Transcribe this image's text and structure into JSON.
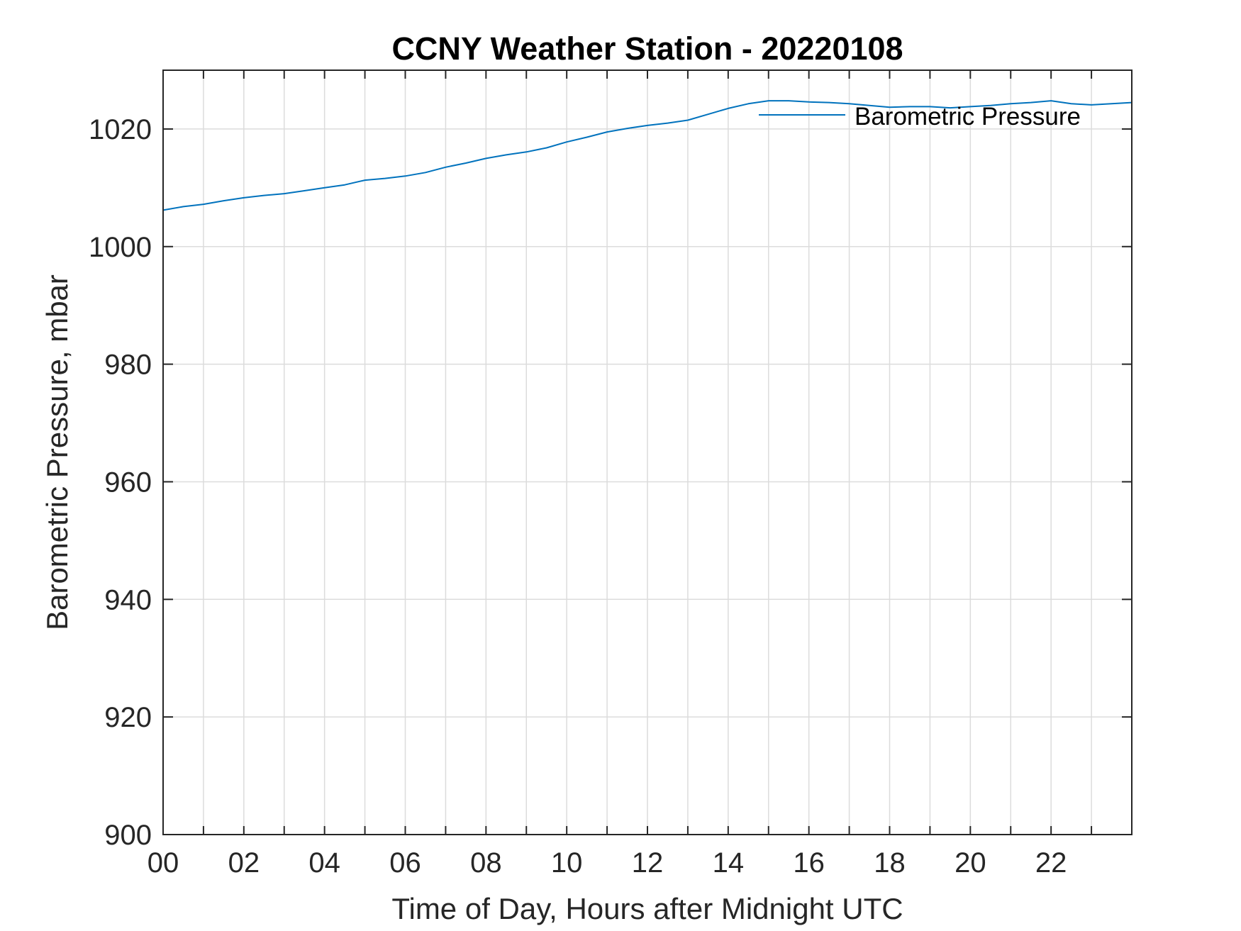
{
  "chart_data": {
    "type": "line",
    "title": "CCNY Weather Station - 20220108",
    "xlabel": "Time of Day, Hours after Midnight UTC",
    "ylabel": "Barometric Pressure, mbar",
    "xlim": [
      0,
      24
    ],
    "ylim": [
      900,
      1030
    ],
    "xticks": [
      0,
      2,
      4,
      6,
      8,
      10,
      12,
      14,
      16,
      18,
      20,
      22
    ],
    "xtick_labels": [
      "00",
      "02",
      "04",
      "06",
      "08",
      "10",
      "12",
      "14",
      "16",
      "18",
      "20",
      "22"
    ],
    "yticks": [
      900,
      920,
      940,
      960,
      980,
      1000,
      1020
    ],
    "ytick_labels": [
      "900",
      "920",
      "940",
      "960",
      "980",
      "1000",
      "1020"
    ],
    "grid": true,
    "legend": {
      "position": "top-right",
      "entries": [
        "Barometric Pressure"
      ]
    },
    "series": [
      {
        "name": "Barometric Pressure",
        "color": "#0072BD",
        "x": [
          0,
          0.5,
          1,
          1.5,
          2,
          2.5,
          3,
          3.5,
          4,
          4.5,
          5,
          5.5,
          6,
          6.5,
          7,
          7.5,
          8,
          8.5,
          9,
          9.5,
          10,
          10.5,
          11,
          11.5,
          12,
          12.5,
          13,
          13.5,
          14,
          14.5,
          15,
          15.5,
          16,
          16.5,
          17,
          17.5,
          18,
          18.5,
          19,
          19.5,
          20,
          20.5,
          21,
          21.5,
          22,
          22.5,
          23,
          23.5,
          24
        ],
        "y": [
          1006.2,
          1006.8,
          1007.2,
          1007.8,
          1008.3,
          1008.7,
          1009.0,
          1009.5,
          1010.0,
          1010.5,
          1011.3,
          1011.6,
          1012.0,
          1012.6,
          1013.5,
          1014.2,
          1015.0,
          1015.6,
          1016.1,
          1016.8,
          1017.8,
          1018.6,
          1019.5,
          1020.1,
          1020.6,
          1021.0,
          1021.5,
          1022.5,
          1023.5,
          1024.3,
          1024.8,
          1024.8,
          1024.6,
          1024.5,
          1024.3,
          1024.0,
          1023.7,
          1023.8,
          1023.8,
          1023.6,
          1023.8,
          1024.0,
          1024.3,
          1024.5,
          1024.8,
          1024.3,
          1024.1,
          1024.3,
          1024.5
        ]
      }
    ]
  }
}
